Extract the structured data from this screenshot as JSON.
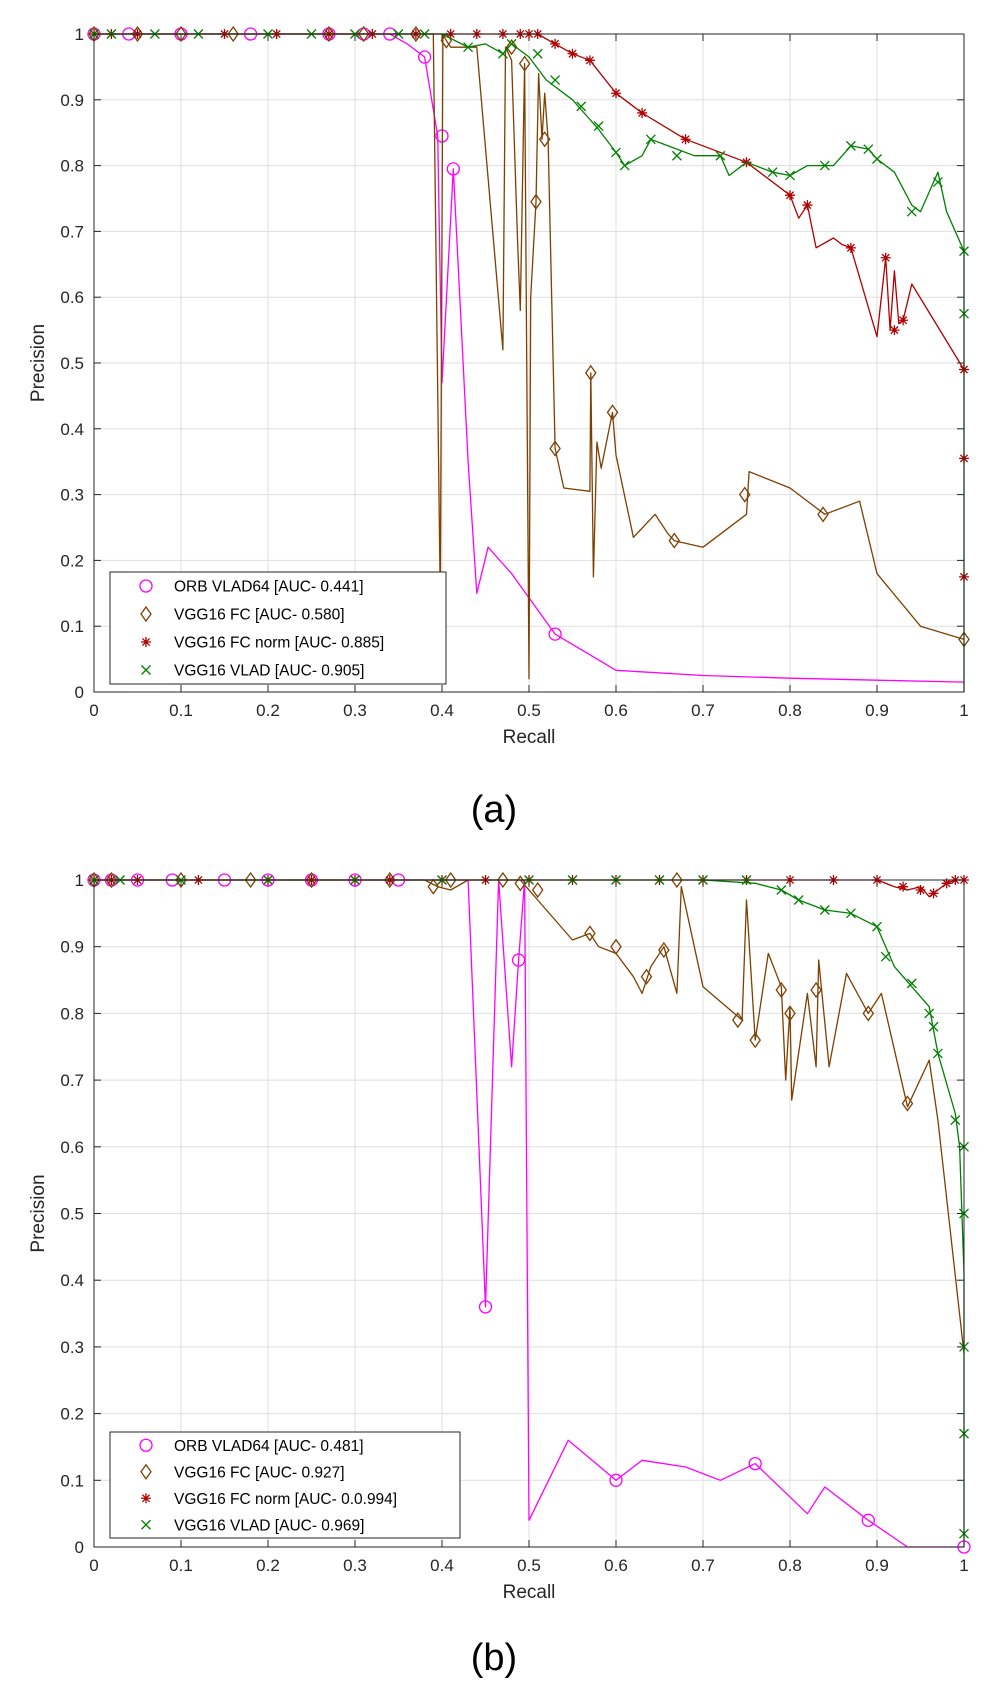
{
  "chart_data": [
    {
      "type": "line",
      "caption": "(a)",
      "xlabel": "Recall",
      "ylabel": "Precision",
      "xlim": [
        0,
        1
      ],
      "ylim": [
        0,
        1
      ],
      "xticks": [
        "0",
        "0.1",
        "0.2",
        "0.3",
        "0.4",
        "0.5",
        "0.6",
        "0.7",
        "0.8",
        "0.9",
        "1"
      ],
      "yticks": [
        "0",
        "0.1",
        "0.2",
        "0.3",
        "0.4",
        "0.5",
        "0.6",
        "0.7",
        "0.8",
        "0.9",
        "1"
      ],
      "grid": true,
      "legend_position": "bottom-left",
      "series": [
        {
          "name": "ORB VLAD64 [AUC- 0.441]",
          "color": "#ff00ff",
          "marker": "circle",
          "x": [
            0,
            0.01,
            0.04,
            0.1,
            0.18,
            0.27,
            0.31,
            0.34,
            0.36,
            0.38,
            0.395,
            0.4,
            0.413,
            0.43,
            0.44,
            0.453,
            0.48,
            0.53,
            0.6,
            0.7,
            0.8,
            0.9,
            1.0
          ],
          "y": [
            1,
            1,
            1,
            1,
            1,
            1,
            1,
            1,
            0.985,
            0.965,
            0.845,
            0.47,
            0.795,
            0.35,
            0.15,
            0.22,
            0.18,
            0.088,
            0.033,
            0.025,
            0.021,
            0.018,
            0.015
          ],
          "marker_x": [
            0,
            0.04,
            0.1,
            0.18,
            0.27,
            0.31,
            0.34,
            0.38,
            0.4,
            0.413,
            0.53
          ],
          "marker_y": [
            1,
            1,
            1,
            1,
            1,
            1,
            1,
            0.965,
            0.845,
            0.795,
            0.088
          ]
        },
        {
          "name": "VGG16 FC [AUC- 0.580]",
          "color": "#7f3f00",
          "marker": "diamond",
          "x": [
            0,
            0.02,
            0.1,
            0.15,
            0.25,
            0.3,
            0.37,
            0.39,
            0.398,
            0.401,
            0.405,
            0.41,
            0.44,
            0.47,
            0.473,
            0.48,
            0.487,
            0.49,
            0.495,
            0.5,
            0.502,
            0.508,
            0.511,
            0.515,
            0.518,
            0.522,
            0.53,
            0.54,
            0.57,
            0.571,
            0.574,
            0.578,
            0.583,
            0.596,
            0.6,
            0.62,
            0.645,
            0.66,
            0.667,
            0.7,
            0.75,
            0.753,
            0.8,
            0.84,
            0.88,
            0.9,
            0.95,
            1.0
          ],
          "y": [
            1,
            1,
            1,
            1,
            1,
            1,
            1,
            1,
            0.14,
            1,
            0.99,
            0.98,
            0.98,
            0.52,
            0.98,
            0.96,
            0.68,
            0.58,
            0.955,
            0.02,
            0.6,
            0.745,
            0.94,
            0.84,
            0.91,
            0.84,
            0.37,
            0.31,
            0.305,
            0.485,
            0.175,
            0.38,
            0.34,
            0.425,
            0.36,
            0.235,
            0.27,
            0.24,
            0.23,
            0.22,
            0.27,
            0.335,
            0.31,
            0.27,
            0.29,
            0.18,
            0.1,
            0.08
          ],
          "marker_x": [
            0,
            0.05,
            0.1,
            0.16,
            0.27,
            0.31,
            0.37,
            0.405,
            0.48,
            0.495,
            0.508,
            0.518,
            0.53,
            0.571,
            0.596,
            0.667,
            0.748,
            0.838,
            1.0
          ],
          "marker_y": [
            1,
            1,
            1,
            1,
            1,
            1,
            1,
            0.99,
            0.98,
            0.955,
            0.745,
            0.84,
            0.37,
            0.485,
            0.425,
            0.23,
            0.3,
            0.27,
            0.08
          ]
        },
        {
          "name": "VGG16 FC norm [AUC- 0.885]",
          "color": "#b00000",
          "marker": "asterisk",
          "x": [
            0,
            0.03,
            0.1,
            0.2,
            0.3,
            0.38,
            0.42,
            0.46,
            0.49,
            0.5,
            0.51,
            0.53,
            0.55,
            0.57,
            0.6,
            0.63,
            0.68,
            0.75,
            0.8,
            0.81,
            0.82,
            0.83,
            0.85,
            0.86,
            0.87,
            0.9,
            0.91,
            0.915,
            0.92,
            0.925,
            0.93,
            0.94,
            1.0
          ],
          "y": [
            1,
            1,
            1,
            1,
            1,
            1,
            1,
            1,
            1,
            1,
            1,
            0.985,
            0.97,
            0.96,
            0.91,
            0.88,
            0.84,
            0.805,
            0.755,
            0.72,
            0.74,
            0.675,
            0.69,
            0.68,
            0.675,
            0.54,
            0.66,
            0.55,
            0.64,
            0.56,
            0.565,
            0.62,
            0.49
          ],
          "marker_x": [
            0,
            0.02,
            0.05,
            0.15,
            0.21,
            0.27,
            0.32,
            0.37,
            0.41,
            0.44,
            0.47,
            0.49,
            0.5,
            0.51,
            0.53,
            0.55,
            0.57,
            0.6,
            0.63,
            0.68,
            0.75,
            0.8,
            0.82,
            0.87,
            0.91,
            0.92,
            0.93,
            1.0,
            1.0,
            1.0
          ],
          "marker_y": [
            1,
            1,
            1,
            1,
            1,
            1,
            1,
            1,
            1,
            1,
            1,
            1,
            1,
            1,
            0.985,
            0.97,
            0.96,
            0.91,
            0.88,
            0.84,
            0.805,
            0.755,
            0.74,
            0.675,
            0.66,
            0.55,
            0.565,
            0.49,
            0.355,
            0.175
          ]
        },
        {
          "name": "VGG16 VLAD [AUC- 0.905]",
          "color": "#008000",
          "marker": "x",
          "x": [
            0,
            0.05,
            0.1,
            0.2,
            0.3,
            0.4,
            0.43,
            0.45,
            0.47,
            0.48,
            0.5,
            0.52,
            0.55,
            0.57,
            0.58,
            0.6,
            0.61,
            0.63,
            0.64,
            0.66,
            0.69,
            0.72,
            0.73,
            0.75,
            0.78,
            0.8,
            0.82,
            0.85,
            0.87,
            0.89,
            0.9,
            0.92,
            0.94,
            0.95,
            0.97,
            0.98,
            1.0,
            1.0
          ],
          "y": [
            1,
            1,
            1,
            1,
            1,
            1,
            0.98,
            0.985,
            0.97,
            0.985,
            0.965,
            0.93,
            0.9,
            0.87,
            0.855,
            0.82,
            0.8,
            0.815,
            0.84,
            0.83,
            0.815,
            0.815,
            0.785,
            0.805,
            0.79,
            0.785,
            0.8,
            0.8,
            0.83,
            0.825,
            0.81,
            0.79,
            0.74,
            0.73,
            0.79,
            0.73,
            0.67,
            0.0
          ],
          "marker_x": [
            0,
            0.02,
            0.07,
            0.12,
            0.2,
            0.25,
            0.3,
            0.35,
            0.38,
            0.43,
            0.47,
            0.48,
            0.51,
            0.53,
            0.56,
            0.58,
            0.6,
            0.61,
            0.64,
            0.67,
            0.72,
            0.78,
            0.8,
            0.84,
            0.87,
            0.89,
            0.9,
            0.94,
            0.97,
            1.0,
            1.0
          ],
          "marker_y": [
            1,
            1,
            1,
            1,
            1,
            1,
            1,
            1,
            1,
            0.98,
            0.97,
            0.985,
            0.97,
            0.93,
            0.89,
            0.86,
            0.82,
            0.8,
            0.84,
            0.815,
            0.815,
            0.79,
            0.785,
            0.8,
            0.83,
            0.825,
            0.81,
            0.73,
            0.775,
            0.67,
            0.575
          ]
        }
      ]
    },
    {
      "type": "line",
      "caption": "(b)",
      "xlabel": "Recall",
      "ylabel": "Precision",
      "xlim": [
        0,
        1
      ],
      "ylim": [
        0,
        1
      ],
      "xticks": [
        "0",
        "0.1",
        "0.2",
        "0.3",
        "0.4",
        "0.5",
        "0.6",
        "0.7",
        "0.8",
        "0.9",
        "1"
      ],
      "yticks": [
        "0",
        "0.1",
        "0.2",
        "0.3",
        "0.4",
        "0.5",
        "0.6",
        "0.7",
        "0.8",
        "0.9",
        "1"
      ],
      "grid": true,
      "legend_position": "bottom-left",
      "series": [
        {
          "name": "ORB VLAD64 [AUC- 0.481]",
          "color": "#ff00ff",
          "marker": "circle",
          "x": [
            0,
            0.02,
            0.1,
            0.2,
            0.3,
            0.4,
            0.43,
            0.45,
            0.465,
            0.48,
            0.488,
            0.495,
            0.5,
            0.545,
            0.6,
            0.63,
            0.68,
            0.72,
            0.76,
            0.82,
            0.84,
            0.89,
            0.935,
            1.0
          ],
          "y": [
            1,
            1,
            1,
            1,
            1,
            1,
            1,
            0.36,
            1,
            0.72,
            0.88,
            1,
            0.04,
            0.16,
            0.1,
            0.13,
            0.12,
            0.1,
            0.125,
            0.05,
            0.09,
            0.04,
            0.0,
            0.0
          ],
          "marker_x": [
            0,
            0.02,
            0.05,
            0.09,
            0.15,
            0.2,
            0.25,
            0.3,
            0.35,
            0.45,
            0.488,
            0.6,
            0.76,
            0.89,
            1.0
          ],
          "marker_y": [
            1,
            1,
            1,
            1,
            1,
            1,
            1,
            1,
            1,
            0.36,
            0.88,
            0.1,
            0.125,
            0.04,
            0.0
          ]
        },
        {
          "name": "VGG16 FC [AUC- 0.927]",
          "color": "#7f3f00",
          "marker": "diamond",
          "x": [
            0,
            0.1,
            0.2,
            0.3,
            0.38,
            0.395,
            0.41,
            0.43,
            0.46,
            0.475,
            0.49,
            0.51,
            0.55,
            0.57,
            0.58,
            0.6,
            0.62,
            0.63,
            0.64,
            0.655,
            0.67,
            0.675,
            0.7,
            0.745,
            0.75,
            0.76,
            0.775,
            0.79,
            0.795,
            0.8,
            0.802,
            0.82,
            0.83,
            0.833,
            0.845,
            0.865,
            0.89,
            0.905,
            0.935,
            0.96,
            0.97,
            1.0
          ],
          "y": [
            1,
            1,
            1,
            1,
            1,
            0.99,
            0.985,
            1,
            1,
            1,
            1,
            0.97,
            0.91,
            0.92,
            0.9,
            0.89,
            0.855,
            0.83,
            0.87,
            0.9,
            0.83,
            0.99,
            0.84,
            0.79,
            0.97,
            0.76,
            0.89,
            0.84,
            0.7,
            0.81,
            0.67,
            0.83,
            0.72,
            0.88,
            0.72,
            0.86,
            0.8,
            0.83,
            0.66,
            0.73,
            0.64,
            0.29
          ],
          "marker_x": [
            0,
            0.02,
            0.1,
            0.18,
            0.25,
            0.34,
            0.39,
            0.41,
            0.47,
            0.49,
            0.51,
            0.57,
            0.6,
            0.635,
            0.655,
            0.67,
            0.74,
            0.76,
            0.79,
            0.8,
            0.83,
            0.89,
            0.935
          ],
          "marker_y": [
            1,
            1,
            1,
            1,
            1,
            1,
            0.99,
            1,
            1,
            0.995,
            0.985,
            0.92,
            0.9,
            0.855,
            0.895,
            1.0,
            0.79,
            0.76,
            0.835,
            0.8,
            0.835,
            0.8,
            0.665
          ]
        },
        {
          "name": "VGG16 FC norm [AUC- 0.0.994]",
          "color": "#b00000",
          "marker": "asterisk",
          "x": [
            0,
            0.1,
            0.2,
            0.3,
            0.4,
            0.5,
            0.6,
            0.7,
            0.8,
            0.85,
            0.9,
            0.92,
            0.935,
            0.95,
            0.96,
            0.97,
            0.98,
            0.99,
            1.0
          ],
          "y": [
            1,
            1,
            1,
            1,
            1,
            1,
            1,
            1,
            1,
            1,
            1,
            0.99,
            0.985,
            0.99,
            0.975,
            0.985,
            0.995,
            1.0,
            1.0
          ],
          "marker_x": [
            0,
            0.02,
            0.05,
            0.12,
            0.2,
            0.25,
            0.3,
            0.34,
            0.4,
            0.45,
            0.5,
            0.55,
            0.6,
            0.65,
            0.7,
            0.75,
            0.8,
            0.85,
            0.9,
            0.93,
            0.95,
            0.965,
            0.98,
            0.99,
            1.0
          ],
          "marker_y": [
            1,
            1,
            1,
            1,
            1,
            1,
            1,
            1,
            1,
            1,
            1,
            1,
            1,
            1,
            1,
            1,
            1,
            1,
            1,
            0.99,
            0.985,
            0.98,
            0.995,
            1,
            1
          ]
        },
        {
          "name": "VGG16 VLAD [AUC- 0.969]",
          "color": "#008000",
          "marker": "x",
          "x": [
            0,
            0.1,
            0.2,
            0.3,
            0.4,
            0.5,
            0.6,
            0.7,
            0.76,
            0.79,
            0.81,
            0.84,
            0.87,
            0.9,
            0.92,
            0.94,
            0.96,
            0.97,
            0.99,
            0.995,
            1.0,
            1.0
          ],
          "y": [
            1,
            1,
            1,
            1,
            1,
            1,
            1,
            1,
            0.995,
            0.985,
            0.97,
            0.955,
            0.95,
            0.93,
            0.87,
            0.84,
            0.81,
            0.74,
            0.65,
            0.6,
            0.41,
            0.0
          ],
          "marker_x": [
            0,
            0.03,
            0.1,
            0.2,
            0.3,
            0.4,
            0.5,
            0.55,
            0.6,
            0.65,
            0.7,
            0.75,
            0.79,
            0.81,
            0.84,
            0.87,
            0.9,
            0.91,
            0.94,
            0.96,
            0.965,
            0.97,
            0.99,
            1.0,
            1.0,
            1.0,
            1.0,
            1.0
          ],
          "marker_y": [
            1,
            1,
            1,
            1,
            1,
            1,
            1,
            1,
            1,
            1,
            1,
            1,
            0.985,
            0.97,
            0.955,
            0.95,
            0.93,
            0.885,
            0.845,
            0.8,
            0.78,
            0.74,
            0.64,
            0.6,
            0.5,
            0.3,
            0.17,
            0.02
          ]
        }
      ]
    }
  ]
}
